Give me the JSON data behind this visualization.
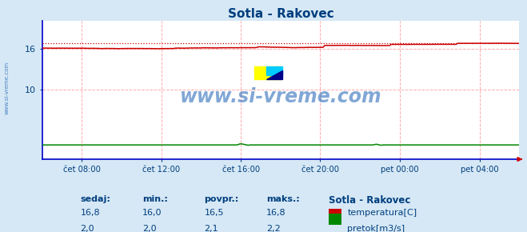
{
  "title": "Sotla - Rakovec",
  "bg_color": "#d6e8f5",
  "plot_bg_color": "#ffffff",
  "text_color": "#003f7f",
  "grid_color": "#ffaaaa",
  "x_tick_labels": [
    "čet 08:00",
    "čet 12:00",
    "čet 16:00",
    "čet 20:00",
    "pet 00:00",
    "pet 04:00"
  ],
  "x_tick_positions": [
    0.083,
    0.25,
    0.417,
    0.583,
    0.75,
    0.917
  ],
  "ylim": [
    0,
    20
  ],
  "ytick_vals": [
    10,
    16
  ],
  "temp_min": 16.0,
  "temp_max": 16.8,
  "temp_avg": 16.5,
  "temp_current": 16.8,
  "flow_min": 2.0,
  "flow_max": 2.2,
  "flow_avg": 2.1,
  "flow_current": 2.0,
  "watermark": "www.si-vreme.com",
  "watermark_color": "#1a5fb4",
  "sidebar_text": "www.si-vreme.com",
  "sidebar_color": "#1a5fb4",
  "temp_line_color": "#cc0000",
  "flow_line_color": "#008800",
  "legend_title": "Sotla - Rakovec",
  "legend_color": "#003f7f",
  "stats_labels": [
    "sedaj:",
    "min.:",
    "povpr.:",
    "maks.:"
  ],
  "stats_temp": [
    16.8,
    16.0,
    16.5,
    16.8
  ],
  "stats_flow": [
    2.0,
    2.0,
    2.1,
    2.2
  ],
  "axis_color": "#0000cc",
  "arrow_color": "#cc0000"
}
